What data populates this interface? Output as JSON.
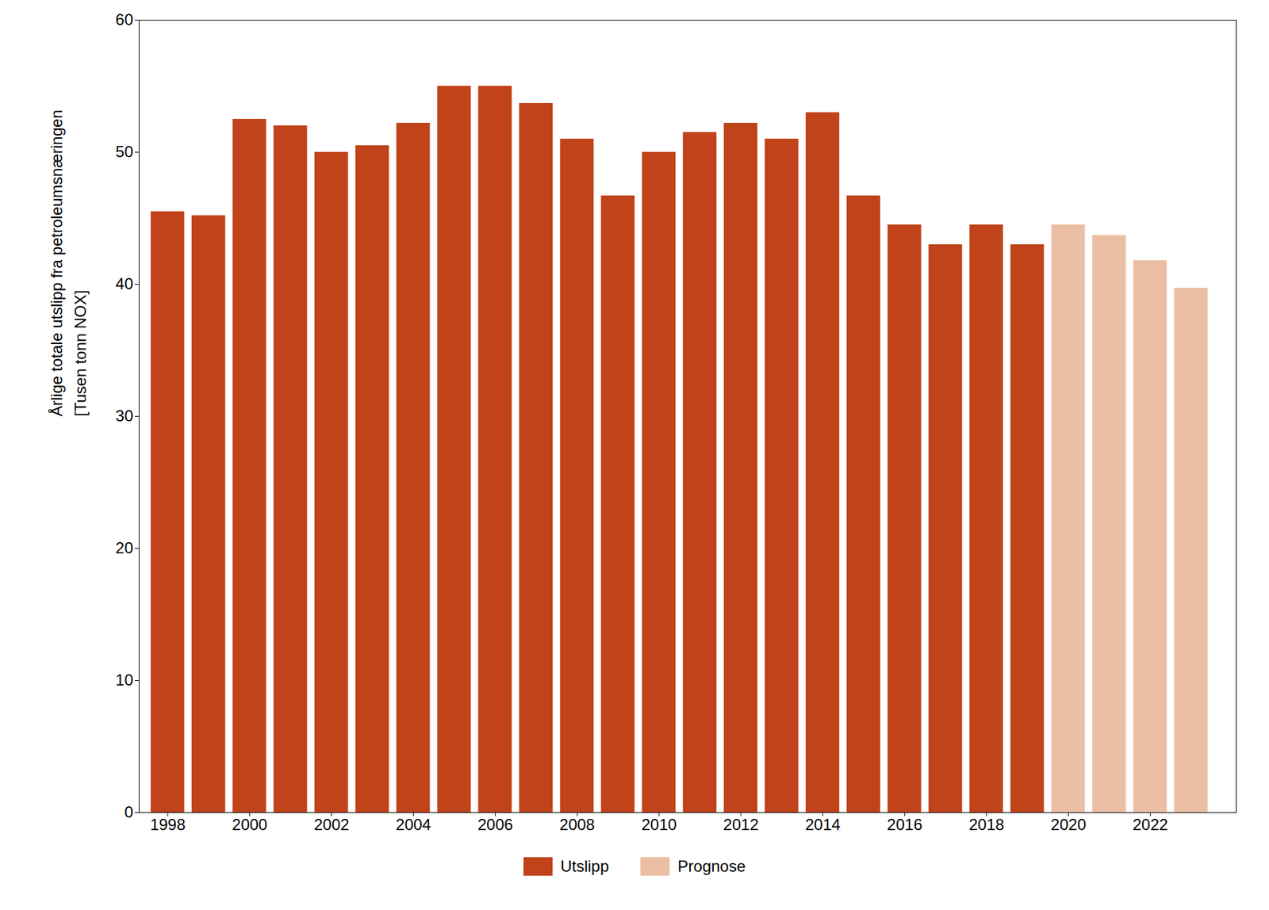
{
  "chart_data": {
    "type": "bar",
    "x": [
      1998,
      1999,
      2000,
      2001,
      2002,
      2003,
      2004,
      2005,
      2006,
      2007,
      2008,
      2009,
      2010,
      2011,
      2012,
      2013,
      2014,
      2015,
      2016,
      2017,
      2018,
      2019,
      2020,
      2021,
      2022,
      2023
    ],
    "series": [
      {
        "name": "Utslipp",
        "color": "#C0431A",
        "values": [
          45.5,
          45.2,
          52.5,
          52.0,
          50.0,
          50.5,
          52.2,
          55.0,
          55.0,
          53.7,
          51.0,
          46.7,
          50.0,
          51.5,
          52.2,
          51.0,
          53.0,
          46.7,
          44.5,
          43.0,
          44.5,
          43.0,
          null,
          null,
          null,
          null
        ]
      },
      {
        "name": "Prognose",
        "color": "#EBBFA3",
        "values": [
          null,
          null,
          null,
          null,
          null,
          null,
          null,
          null,
          null,
          null,
          null,
          null,
          null,
          null,
          null,
          null,
          null,
          null,
          null,
          null,
          null,
          null,
          44.5,
          43.7,
          41.8,
          39.7
        ]
      }
    ],
    "ylabel": "Årlige totale utslipp fra petroleumsnæringen\n[Tusen tonn NOX]",
    "xlim": [
      1997.3,
      2024.1
    ],
    "xticks": [
      1998,
      2000,
      2002,
      2004,
      2006,
      2008,
      2010,
      2012,
      2014,
      2016,
      2018,
      2020,
      2022
    ],
    "ylim": [
      0,
      60
    ],
    "yticks": [
      0,
      10,
      20,
      30,
      40,
      50,
      60
    ],
    "legend": "bottom",
    "grid": false
  }
}
